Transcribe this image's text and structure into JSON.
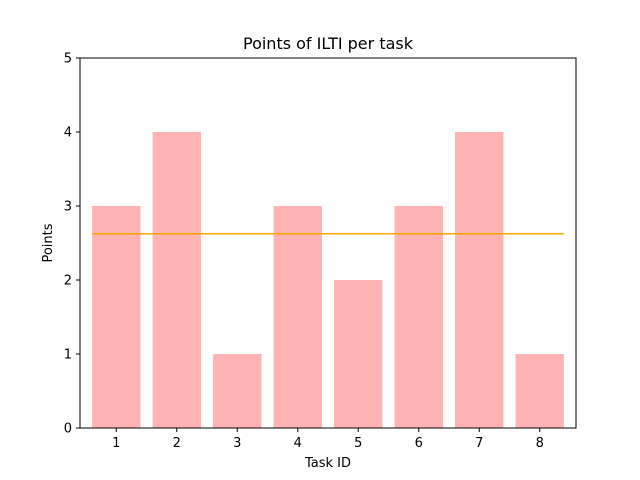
{
  "chart_data": {
    "type": "bar",
    "title": "Points of ILTI per task",
    "xlabel": "Task ID",
    "ylabel": "Points",
    "categories": [
      "1",
      "2",
      "3",
      "4",
      "5",
      "6",
      "7",
      "8"
    ],
    "values": [
      3,
      4,
      1,
      3,
      2,
      3,
      4,
      1
    ],
    "ylim": [
      0,
      5
    ],
    "yticks": [
      "0",
      "1",
      "2",
      "3",
      "4",
      "5"
    ],
    "reference_line": {
      "value": 2.625,
      "color": "#ffa500"
    },
    "bar_color": "#ffb3b3",
    "grid": false,
    "legend": "none"
  }
}
